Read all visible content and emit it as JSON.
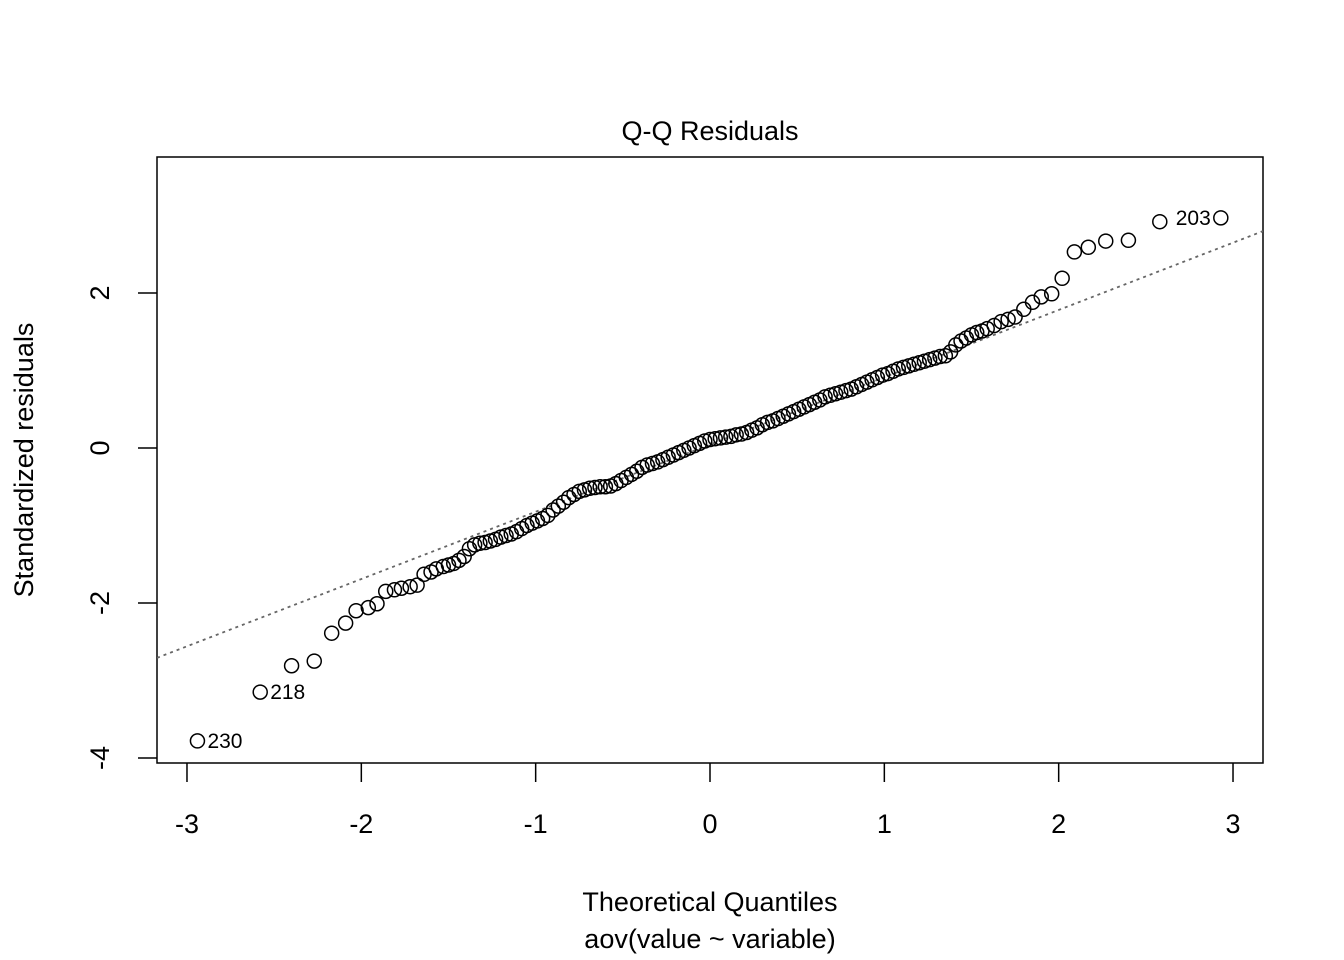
{
  "chart_data": {
    "type": "scatter",
    "title": "Q-Q Residuals",
    "x_label": "Theoretical Quantiles",
    "subtitle": "aov(value ~ variable)",
    "y_label": "Standardized residuals",
    "xlim": [
      -3.172,
      3.172
    ],
    "ylim": [
      -4.065,
      3.755
    ],
    "xticks": [
      -3,
      -2,
      -1,
      0,
      1,
      2,
      3
    ],
    "yticks": [
      -4,
      -2,
      0,
      2
    ],
    "color": "#000000",
    "qqline": {
      "intercept": 0.045,
      "slope": 0.868,
      "color": "#666666"
    },
    "x": [
      -2.94,
      -2.58,
      -2.4,
      -2.27,
      -2.17,
      -2.09,
      -2.03,
      -1.96,
      -1.91,
      -1.86,
      -1.81,
      -1.77,
      -1.72,
      -1.68,
      -1.64,
      -1.6,
      -1.57,
      -1.53,
      -1.5,
      -1.47,
      -1.44,
      -1.41,
      -1.38,
      -1.35,
      -1.32,
      -1.29,
      -1.26,
      -1.23,
      -1.2,
      -1.17,
      -1.14,
      -1.11,
      -1.08,
      -1.05,
      -1.02,
      -0.99,
      -0.96,
      -0.93,
      -0.9,
      -0.87,
      -0.84,
      -0.81,
      -0.78,
      -0.75,
      -0.72,
      -0.69,
      -0.66,
      -0.63,
      -0.6,
      -0.57,
      -0.54,
      -0.51,
      -0.48,
      -0.45,
      -0.42,
      -0.39,
      -0.36,
      -0.33,
      -0.3,
      -0.27,
      -0.24,
      -0.21,
      -0.18,
      -0.15,
      -0.12,
      -0.09,
      -0.06,
      -0.03,
      0.0,
      0.03,
      0.06,
      0.09,
      0.12,
      0.15,
      0.18,
      0.21,
      0.24,
      0.27,
      0.3,
      0.33,
      0.36,
      0.39,
      0.42,
      0.45,
      0.48,
      0.51,
      0.54,
      0.57,
      0.6,
      0.63,
      0.66,
      0.69,
      0.72,
      0.75,
      0.78,
      0.81,
      0.84,
      0.87,
      0.9,
      0.93,
      0.96,
      0.99,
      1.02,
      1.05,
      1.08,
      1.11,
      1.14,
      1.17,
      1.2,
      1.23,
      1.26,
      1.29,
      1.32,
      1.35,
      1.38,
      1.41,
      1.44,
      1.47,
      1.5,
      1.53,
      1.56,
      1.59,
      1.63,
      1.67,
      1.71,
      1.75,
      1.8,
      1.85,
      1.9,
      1.96,
      2.02,
      2.09,
      2.17,
      2.27,
      2.4,
      2.58,
      2.93
    ],
    "y": [
      -3.78,
      -3.15,
      -2.81,
      -2.75,
      -2.39,
      -2.26,
      -2.1,
      -2.06,
      -2.01,
      -1.85,
      -1.83,
      -1.81,
      -1.79,
      -1.77,
      -1.63,
      -1.6,
      -1.56,
      -1.53,
      -1.51,
      -1.49,
      -1.45,
      -1.4,
      -1.3,
      -1.25,
      -1.23,
      -1.22,
      -1.2,
      -1.18,
      -1.15,
      -1.13,
      -1.11,
      -1.08,
      -1.04,
      -1.0,
      -0.97,
      -0.94,
      -0.91,
      -0.87,
      -0.8,
      -0.75,
      -0.7,
      -0.64,
      -0.6,
      -0.56,
      -0.54,
      -0.52,
      -0.51,
      -0.5,
      -0.5,
      -0.49,
      -0.46,
      -0.42,
      -0.38,
      -0.34,
      -0.3,
      -0.25,
      -0.22,
      -0.2,
      -0.18,
      -0.15,
      -0.12,
      -0.09,
      -0.06,
      -0.03,
      0.0,
      0.03,
      0.06,
      0.09,
      0.11,
      0.12,
      0.13,
      0.14,
      0.15,
      0.17,
      0.18,
      0.2,
      0.23,
      0.26,
      0.3,
      0.33,
      0.35,
      0.38,
      0.41,
      0.44,
      0.47,
      0.5,
      0.53,
      0.56,
      0.59,
      0.62,
      0.66,
      0.68,
      0.7,
      0.72,
      0.74,
      0.76,
      0.79,
      0.82,
      0.85,
      0.88,
      0.91,
      0.94,
      0.96,
      0.99,
      1.02,
      1.04,
      1.06,
      1.08,
      1.1,
      1.12,
      1.14,
      1.16,
      1.18,
      1.19,
      1.24,
      1.33,
      1.38,
      1.42,
      1.46,
      1.49,
      1.51,
      1.54,
      1.58,
      1.63,
      1.66,
      1.69,
      1.79,
      1.88,
      1.95,
      1.99,
      2.19,
      2.53,
      2.59,
      2.67,
      2.68,
      2.92,
      2.97
    ],
    "point_labels": [
      {
        "text": "230",
        "point": 0
      },
      {
        "text": "218",
        "point": 1
      },
      {
        "text": "203",
        "point": 136
      }
    ]
  }
}
